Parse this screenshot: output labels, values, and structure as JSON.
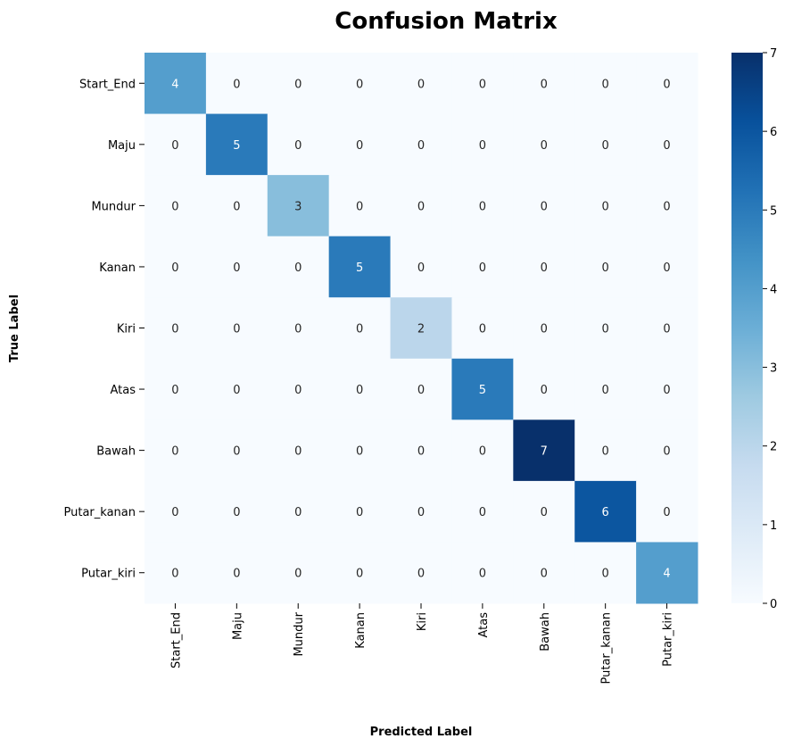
{
  "chart_data": {
    "type": "heatmap",
    "title": "Confusion Matrix",
    "xlabel": "Predicted Label",
    "ylabel": "True Label",
    "x_categories": [
      "Start_End",
      "Maju",
      "Mundur",
      "Kanan",
      "Kiri",
      "Atas",
      "Bawah",
      "Putar_kanan",
      "Putar_kiri"
    ],
    "y_categories": [
      "Start_End",
      "Maju",
      "Mundur",
      "Kanan",
      "Kiri",
      "Atas",
      "Bawah",
      "Putar_kanan",
      "Putar_kiri"
    ],
    "values": [
      [
        4,
        0,
        0,
        0,
        0,
        0,
        0,
        0,
        0
      ],
      [
        0,
        5,
        0,
        0,
        0,
        0,
        0,
        0,
        0
      ],
      [
        0,
        0,
        3,
        0,
        0,
        0,
        0,
        0,
        0
      ],
      [
        0,
        0,
        0,
        5,
        0,
        0,
        0,
        0,
        0
      ],
      [
        0,
        0,
        0,
        0,
        2,
        0,
        0,
        0,
        0
      ],
      [
        0,
        0,
        0,
        0,
        0,
        5,
        0,
        0,
        0
      ],
      [
        0,
        0,
        0,
        0,
        0,
        0,
        7,
        0,
        0
      ],
      [
        0,
        0,
        0,
        0,
        0,
        0,
        0,
        6,
        0
      ],
      [
        0,
        0,
        0,
        0,
        0,
        0,
        0,
        0,
        4
      ]
    ],
    "colormap": "Blues",
    "color_range": [
      0,
      7
    ],
    "colorbar_ticks": [
      "0",
      "1",
      "2",
      "3",
      "4",
      "5",
      "6",
      "7"
    ],
    "annotations": true
  }
}
